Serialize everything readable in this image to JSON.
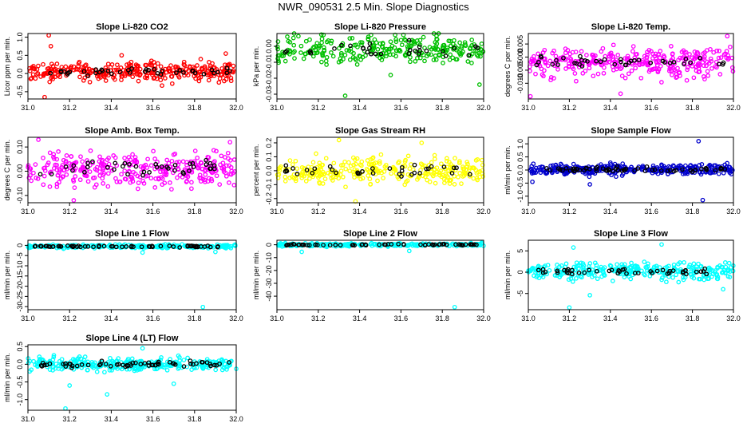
{
  "page_title": "NWR_090531  2.5 Min. Slope Diagnostics",
  "chart_data": [
    {
      "type": "scatter",
      "title": "Slope Li-820 CO2",
      "ylabel": "Licor ppm per min.",
      "color": "#ff0000",
      "xlim": [
        31.0,
        32.0
      ],
      "ylim": [
        -0.7,
        1.1
      ],
      "xticks": [
        31.0,
        31.2,
        31.4,
        31.6,
        31.8,
        32.0
      ],
      "xtick_labels": [
        "31.0",
        "31.2",
        "31.4",
        "31.6",
        "31.8",
        "32.0"
      ],
      "yticks": [
        -0.5,
        0.0,
        0.5,
        1.0
      ],
      "ytick_labels": [
        "-0.5",
        "0.0",
        "0.5",
        "1.0"
      ],
      "center": 0.05,
      "spread": 0.18,
      "n": 320,
      "n_black": 40,
      "outliers": [
        [
          31.1,
          1.05
        ],
        [
          31.11,
          0.75
        ],
        [
          31.08,
          -0.65
        ],
        [
          31.45,
          0.5
        ],
        [
          31.95,
          0.55
        ]
      ]
    },
    {
      "type": "scatter",
      "title": "Slope Li-820 Pressure",
      "ylabel": "kPa per min.",
      "color": "#00c000",
      "xlim": [
        31.0,
        32.0
      ],
      "ylim": [
        -0.033,
        0.008
      ],
      "xticks": [
        31.0,
        31.2,
        31.4,
        31.6,
        31.8,
        32.0
      ],
      "xtick_labels": [
        "31.0",
        "31.2",
        "31.4",
        "31.6",
        "31.8",
        "32.0"
      ],
      "yticks": [
        -0.03,
        -0.02,
        -0.01,
        0.0
      ],
      "ytick_labels": [
        "-0.03",
        "-0.02",
        "-0.01",
        "0.00"
      ],
      "center": -0.002,
      "spread": 0.006,
      "n": 280,
      "n_black": 30,
      "outliers": [
        [
          31.05,
          0.006
        ],
        [
          31.33,
          -0.031
        ],
        [
          31.98,
          -0.024
        ],
        [
          31.55,
          -0.018
        ]
      ]
    },
    {
      "type": "scatter",
      "title": "Slope Li-820 Temp.",
      "ylabel": "degrees C per min.",
      "color": "#ff00ff",
      "xlim": [
        31.0,
        32.0
      ],
      "ylim": [
        -0.016,
        0.009
      ],
      "xticks": [
        31.0,
        31.2,
        31.4,
        31.6,
        31.8,
        32.0
      ],
      "xtick_labels": [
        "31.0",
        "31.2",
        "31.4",
        "31.6",
        "31.8",
        "32.0"
      ],
      "yticks": [
        -0.01,
        -0.005,
        0.0,
        0.005
      ],
      "ytick_labels": [
        "-0.010",
        "-0.005",
        "0.000",
        "0.005"
      ],
      "center": -0.002,
      "spread": 0.004,
      "n": 320,
      "n_black": 40,
      "outliers": [
        [
          31.01,
          -0.015
        ],
        [
          31.97,
          0.008
        ],
        [
          31.45,
          -0.014
        ]
      ]
    },
    {
      "type": "scatter",
      "title": "Slope Amb. Box Temp.",
      "ylabel": "degrees C per min.",
      "color": "#ff00ff",
      "xlim": [
        31.0,
        32.0
      ],
      "ylim": [
        -0.13,
        0.14
      ],
      "xticks": [
        31.0,
        31.2,
        31.4,
        31.6,
        31.8,
        32.0
      ],
      "xtick_labels": [
        "31.0",
        "31.2",
        "31.4",
        "31.6",
        "31.8",
        "32.0"
      ],
      "yticks": [
        -0.1,
        0.0,
        0.1
      ],
      "ytick_labels": [
        "-0.10",
        "0.00",
        "0.10"
      ],
      "center": 0.01,
      "spread": 0.05,
      "n": 320,
      "n_black": 40,
      "outliers": [
        [
          31.05,
          0.13
        ],
        [
          31.97,
          0.12
        ],
        [
          31.22,
          -0.12
        ]
      ]
    },
    {
      "type": "scatter",
      "title": "Slope Gas Stream RH",
      "ylabel": "percent per min.",
      "color": "#ffff00",
      "xlim": [
        31.0,
        32.0
      ],
      "ylim": [
        -0.23,
        0.24
      ],
      "xticks": [
        31.0,
        31.2,
        31.4,
        31.6,
        31.8,
        32.0
      ],
      "xtick_labels": [
        "31.0",
        "31.2",
        "31.4",
        "31.6",
        "31.8",
        "32.0"
      ],
      "yticks": [
        -0.2,
        -0.1,
        0.0,
        0.1,
        0.2
      ],
      "ytick_labels": [
        "-0.2",
        "-0.1",
        "0.0",
        "0.1",
        "0.2"
      ],
      "center": 0.0,
      "spread": 0.07,
      "n": 300,
      "n_black": 35,
      "outliers": [
        [
          31.3,
          0.22
        ],
        [
          31.38,
          -0.22
        ],
        [
          31.7,
          0.2
        ]
      ]
    },
    {
      "type": "scatter",
      "title": "Slope Sample Flow",
      "ylabel": "ml/min per min.",
      "color": "#0000cc",
      "xlim": [
        31.0,
        32.0
      ],
      "ylim": [
        -1.25,
        1.25
      ],
      "xticks": [
        31.0,
        31.2,
        31.4,
        31.6,
        31.8,
        32.0
      ],
      "xtick_labels": [
        "31.0",
        "31.2",
        "31.4",
        "31.6",
        "31.8",
        "32.0"
      ],
      "yticks": [
        -1.0,
        -0.5,
        0.0,
        0.5,
        1.0
      ],
      "ytick_labels": [
        "-1.0",
        "-0.5",
        "0.0",
        "0.5",
        "1.0"
      ],
      "center": 0.02,
      "spread": 0.14,
      "n": 320,
      "n_black": 60,
      "outliers": [
        [
          31.83,
          1.1
        ],
        [
          31.85,
          -1.15
        ],
        [
          31.3,
          -0.55
        ],
        [
          31.02,
          -0.45
        ]
      ]
    },
    {
      "type": "scatter",
      "title": "Slope Line 1 Flow",
      "ylabel": "ml/min per min.",
      "color": "#00ffff",
      "xlim": [
        31.0,
        32.0
      ],
      "ylim": [
        -31.5,
        2.5
      ],
      "xticks": [
        31.0,
        31.2,
        31.4,
        31.6,
        31.8,
        32.0
      ],
      "xtick_labels": [
        "31.0",
        "31.2",
        "31.4",
        "31.6",
        "31.8",
        "32.0"
      ],
      "yticks": [
        -30,
        -25,
        -20,
        -15,
        -10,
        -5,
        0
      ],
      "ytick_labels": [
        "-30",
        "-25",
        "-20",
        "-15",
        "-10",
        "-5",
        "0"
      ],
      "center": -0.5,
      "spread": 0.6,
      "n": 260,
      "n_black": 60,
      "outliers": [
        [
          31.84,
          -30.2
        ],
        [
          31.55,
          -3.5
        ],
        [
          31.9,
          -3.2
        ]
      ]
    },
    {
      "type": "scatter",
      "title": "Slope Line 2 Flow",
      "ylabel": "ml/min per min.",
      "color": "#00ffff",
      "xlim": [
        31.0,
        32.0
      ],
      "ylim": [
        -50.5,
        3.5
      ],
      "xticks": [
        31.0,
        31.2,
        31.4,
        31.6,
        31.8,
        32.0
      ],
      "xtick_labels": [
        "31.0",
        "31.2",
        "31.4",
        "31.6",
        "31.8",
        "32.0"
      ],
      "yticks": [
        -40,
        -30,
        -20,
        -10,
        0
      ],
      "ytick_labels": [
        "-40",
        "-30",
        "-20",
        "-10",
        "0"
      ],
      "center": 0.0,
      "spread": 0.8,
      "n": 260,
      "n_black": 60,
      "outliers": [
        [
          31.86,
          -48.5
        ],
        [
          31.12,
          -5.5
        ],
        [
          31.64,
          -4.8
        ]
      ]
    },
    {
      "type": "scatter",
      "title": "Slope Line 3 Flow",
      "ylabel": "ml/min per min.",
      "color": "#00ffff",
      "xlim": [
        31.0,
        32.0
      ],
      "ylim": [
        -8.8,
        7.5
      ],
      "xticks": [
        31.0,
        31.2,
        31.4,
        31.6,
        31.8,
        32.0
      ],
      "xtick_labels": [
        "31.0",
        "31.2",
        "31.4",
        "31.6",
        "31.8",
        "32.0"
      ],
      "yticks": [
        -5,
        0,
        5
      ],
      "ytick_labels": [
        "-5",
        "0",
        "5"
      ],
      "center": 0.2,
      "spread": 1.4,
      "n": 300,
      "n_black": 45,
      "outliers": [
        [
          31.2,
          -8.3
        ],
        [
          31.22,
          5.8
        ],
        [
          31.65,
          6.5
        ],
        [
          31.3,
          -5.4
        ],
        [
          31.95,
          -4.0
        ]
      ]
    },
    {
      "type": "scatter",
      "title": "Slope Line 4 (LT) Flow",
      "ylabel": "ml/min per min.",
      "color": "#00ffff",
      "xlim": [
        31.0,
        32.0
      ],
      "ylim": [
        -1.3,
        0.55
      ],
      "xticks": [
        31.0,
        31.2,
        31.4,
        31.6,
        31.8,
        32.0
      ],
      "xtick_labels": [
        "31.0",
        "31.2",
        "31.4",
        "31.6",
        "31.8",
        "32.0"
      ],
      "yticks": [
        -1.0,
        -0.5,
        0.0,
        0.5
      ],
      "ytick_labels": [
        "-1.0",
        "-0.5",
        "0.0",
        "0.5"
      ],
      "center": 0.0,
      "spread": 0.13,
      "n": 320,
      "n_black": 60,
      "outliers": [
        [
          31.18,
          -1.25
        ],
        [
          31.38,
          -0.85
        ],
        [
          31.2,
          -0.6
        ],
        [
          31.7,
          -0.55
        ],
        [
          31.55,
          0.45
        ]
      ]
    }
  ]
}
